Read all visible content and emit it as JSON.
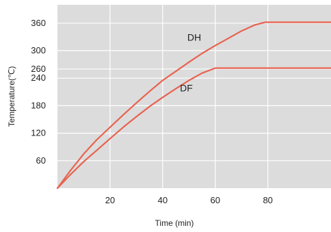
{
  "chart_data": {
    "type": "line",
    "xlabel": "Time (min)",
    "ylabel": "Temperature(℃)",
    "xlim": [
      0,
      104
    ],
    "ylim": [
      0,
      400
    ],
    "x_ticks": [
      20,
      40,
      60,
      80
    ],
    "y_ticks": [
      60,
      120,
      180,
      240,
      260,
      300,
      360
    ],
    "grid": true,
    "plot_background": "#dcdcdc",
    "grid_color": "#ffffff",
    "series": [
      {
        "name": "DH",
        "color": "#e8624f",
        "x": [
          0,
          5,
          10,
          15,
          20,
          25,
          30,
          35,
          40,
          45,
          50,
          55,
          60,
          65,
          70,
          75,
          79,
          85,
          95,
          104
        ],
        "y": [
          0,
          39,
          75,
          106,
          133,
          160,
          186,
          211,
          235,
          255,
          275,
          294,
          311,
          327,
          343,
          356,
          362,
          362,
          362,
          362
        ]
      },
      {
        "name": "DF",
        "color": "#e8624f",
        "x": [
          0,
          5,
          10,
          15,
          20,
          25,
          30,
          35,
          40,
          45,
          50,
          55,
          60,
          70,
          80,
          90,
          104
        ],
        "y": [
          0,
          30,
          58,
          83,
          108,
          133,
          156,
          178,
          198,
          217,
          235,
          251,
          262,
          262,
          262,
          262,
          262
        ]
      }
    ],
    "annotations": [
      {
        "text": "DH",
        "x": 52,
        "y": 322
      },
      {
        "text": "DF",
        "x": 49,
        "y": 211
      }
    ]
  }
}
